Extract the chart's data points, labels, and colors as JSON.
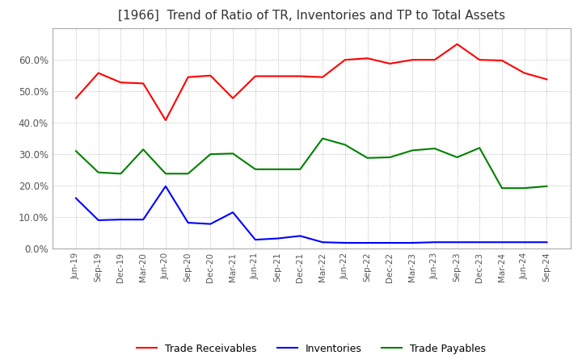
{
  "title": "[1966]  Trend of Ratio of TR, Inventories and TP to Total Assets",
  "x_labels": [
    "Jun-19",
    "Sep-19",
    "Dec-19",
    "Mar-20",
    "Jun-20",
    "Sep-20",
    "Dec-20",
    "Mar-21",
    "Jun-21",
    "Sep-21",
    "Dec-21",
    "Mar-22",
    "Jun-22",
    "Sep-22",
    "Dec-22",
    "Mar-23",
    "Jun-23",
    "Sep-23",
    "Dec-23",
    "Mar-24",
    "Jun-24",
    "Sep-24"
  ],
  "trade_receivables": [
    0.478,
    0.558,
    0.528,
    0.525,
    0.408,
    0.545,
    0.55,
    0.478,
    0.548,
    0.548,
    0.548,
    0.545,
    0.6,
    0.605,
    0.588,
    0.6,
    0.6,
    0.65,
    0.6,
    0.598,
    0.558,
    0.538
  ],
  "inventories": [
    0.16,
    0.09,
    0.092,
    0.092,
    0.198,
    0.082,
    0.078,
    0.115,
    0.028,
    0.032,
    0.04,
    0.02,
    0.018,
    0.018,
    0.018,
    0.018,
    0.02,
    0.02,
    0.02,
    0.02,
    0.02,
    0.02
  ],
  "trade_payables": [
    0.31,
    0.242,
    0.238,
    0.315,
    0.238,
    0.238,
    0.3,
    0.302,
    0.252,
    0.252,
    0.252,
    0.35,
    0.33,
    0.288,
    0.29,
    0.312,
    0.318,
    0.29,
    0.32,
    0.192,
    0.192,
    0.198
  ],
  "tr_color": "#ff0000",
  "inv_color": "#0000ff",
  "tp_color": "#008000",
  "ylim": [
    0.0,
    0.7
  ],
  "yticks": [
    0.0,
    0.1,
    0.2,
    0.3,
    0.4,
    0.5,
    0.6
  ],
  "legend_labels": [
    "Trade Receivables",
    "Inventories",
    "Trade Payables"
  ],
  "background_color": "#ffffff",
  "title_fontsize": 11
}
